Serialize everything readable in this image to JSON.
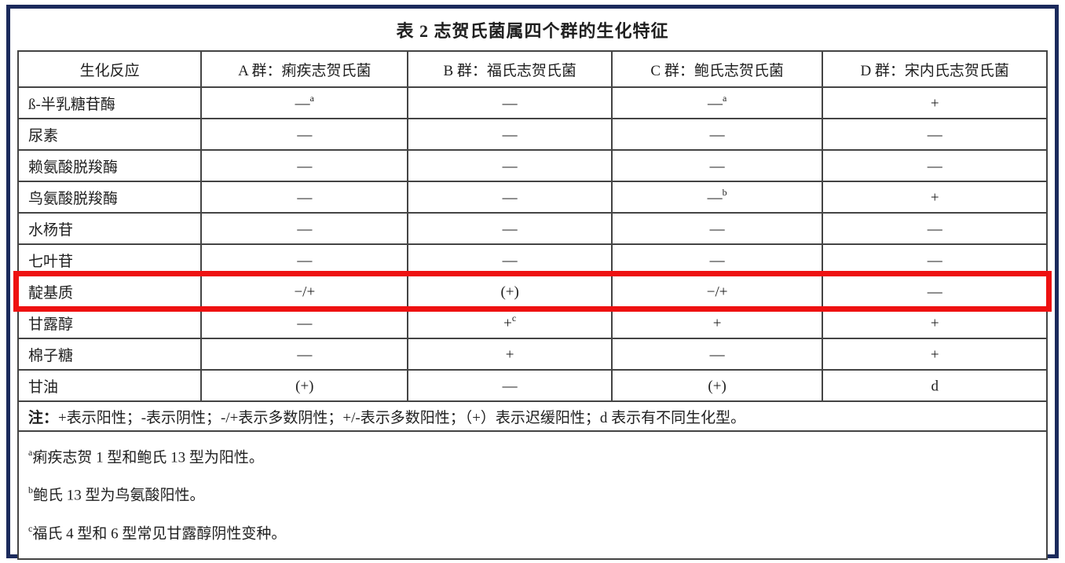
{
  "page": {
    "frame_color": "#1b2a5c",
    "highlight_color": "#ee1111",
    "grid_color": "#444444"
  },
  "title": "表 2 志贺氏菌属四个群的生化特征",
  "table": {
    "headers": [
      "生化反应",
      "A 群：痢疾志贺氏菌",
      "B 群：福氏志贺氏菌",
      "C 群：鲍氏志贺氏菌",
      "D 群：宋内氏志贺氏菌"
    ],
    "rows": [
      {
        "label": "ß-半乳糖苷酶",
        "cells": [
          {
            "v": "—",
            "s": "a"
          },
          {
            "v": "—"
          },
          {
            "v": "—",
            "s": "a"
          },
          {
            "v": "+"
          }
        ]
      },
      {
        "label": "尿素",
        "cells": [
          {
            "v": "—"
          },
          {
            "v": "—"
          },
          {
            "v": "—"
          },
          {
            "v": "—"
          }
        ]
      },
      {
        "label": "赖氨酸脱羧酶",
        "cells": [
          {
            "v": "—"
          },
          {
            "v": "—"
          },
          {
            "v": "—"
          },
          {
            "v": "—"
          }
        ]
      },
      {
        "label": "鸟氨酸脱羧酶",
        "cells": [
          {
            "v": "—"
          },
          {
            "v": "—"
          },
          {
            "v": "—",
            "s": "b"
          },
          {
            "v": "+"
          }
        ]
      },
      {
        "label": "水杨苷",
        "cells": [
          {
            "v": "—"
          },
          {
            "v": "—"
          },
          {
            "v": "—"
          },
          {
            "v": "—"
          }
        ]
      },
      {
        "label": "七叶苷",
        "cells": [
          {
            "v": "—"
          },
          {
            "v": "—"
          },
          {
            "v": "—"
          },
          {
            "v": "—"
          }
        ]
      },
      {
        "label": "靛基质",
        "highlight": true,
        "cells": [
          {
            "v": "−/+"
          },
          {
            "v": "(+)"
          },
          {
            "v": "−/+"
          },
          {
            "v": "—"
          }
        ]
      },
      {
        "label": "甘露醇",
        "cells": [
          {
            "v": "—"
          },
          {
            "v": "+",
            "s": "c"
          },
          {
            "v": "+"
          },
          {
            "v": "+"
          }
        ]
      },
      {
        "label": "棉子糖",
        "cells": [
          {
            "v": "—"
          },
          {
            "v": "+"
          },
          {
            "v": "—"
          },
          {
            "v": "+"
          }
        ]
      },
      {
        "label": "甘油",
        "cells": [
          {
            "v": "(+)"
          },
          {
            "v": "—"
          },
          {
            "v": "(+)"
          },
          {
            "v": "d"
          }
        ]
      }
    ],
    "note": {
      "prefix": "注：",
      "text": "+表示阳性；-表示阴性；-/+表示多数阴性；+/-表示多数阳性；（+）表示迟缓阳性；d 表示有不同生化型。"
    },
    "footnotes": [
      {
        "s": "a",
        "text": "痢疾志贺 1 型和鲍氏 13 型为阳性。"
      },
      {
        "s": "b",
        "text": "鲍氏 13 型为鸟氨酸阳性。"
      },
      {
        "s": "c",
        "text": "福氏 4 型和 6 型常见甘露醇阴性变种。"
      }
    ]
  }
}
